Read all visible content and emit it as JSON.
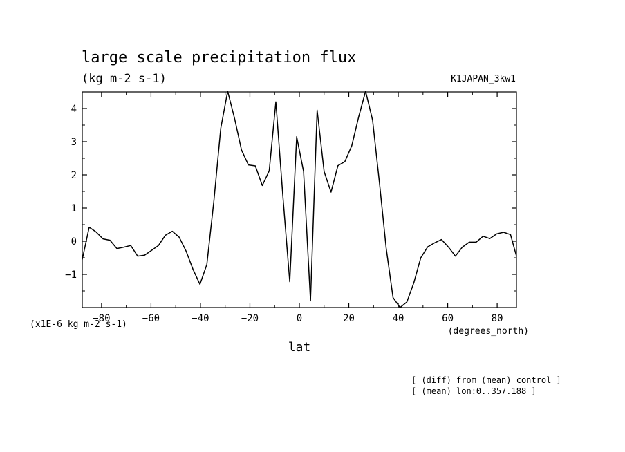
{
  "chart_data": {
    "type": "line",
    "title": "large scale precipitation flux",
    "units": "(kg m-2 s-1)",
    "model_label": "K1JAPAN_3kw1",
    "scale_note": "(x1E-6 kg m-2 s-1)",
    "xlabel": "lat",
    "xunits": "(degrees_north)",
    "notes": [
      "[ (diff) from (mean) control ]",
      "[ (mean) lon:0..357.188 ]"
    ],
    "xlim": [
      -87.8,
      87.8
    ],
    "ylim": [
      -2.0,
      4.5
    ],
    "xticks": [
      -80,
      -60,
      -40,
      -20,
      0,
      20,
      40,
      60,
      80
    ],
    "xtick_labels": [
      "−80",
      "−60",
      "−40",
      "−20",
      "0",
      "20",
      "40",
      "60",
      "80"
    ],
    "yticks": [
      -1,
      0,
      1,
      2,
      3,
      4
    ],
    "ytick_labels": [
      "−1",
      "0",
      "1",
      "2",
      "3",
      "4"
    ],
    "grid": false,
    "series": [
      {
        "x": [
          -87.8,
          -85.0,
          -82.2,
          -79.4,
          -76.6,
          -73.8,
          -71.0,
          -68.2,
          -65.4,
          -62.6,
          -59.8,
          -57.0,
          -54.2,
          -51.4,
          -48.6,
          -45.8,
          -43.0,
          -40.2,
          -37.4,
          -34.6,
          -31.8,
          -29.0,
          -26.2,
          -23.4,
          -20.6,
          -17.8,
          -15.0,
          -12.2,
          -9.5,
          -6.7,
          -3.9,
          -1.1,
          1.7,
          4.5,
          7.2,
          10.0,
          12.8,
          15.6,
          18.4,
          21.2,
          24.0,
          26.8,
          29.6,
          32.4,
          35.1,
          37.9,
          40.7,
          43.5,
          46.3,
          49.1,
          51.9,
          54.7,
          57.5,
          60.3,
          63.1,
          65.9,
          68.7,
          71.5,
          74.3,
          77.0,
          79.8,
          82.6,
          85.4,
          87.8
        ],
        "y": [
          -0.55,
          0.42,
          0.28,
          0.07,
          0.03,
          -0.22,
          -0.18,
          -0.13,
          -0.45,
          -0.42,
          -0.28,
          -0.13,
          0.18,
          0.3,
          0.12,
          -0.3,
          -0.85,
          -1.3,
          -0.7,
          1.2,
          3.4,
          4.52,
          3.7,
          2.75,
          2.3,
          2.27,
          1.68,
          2.12,
          4.2,
          1.4,
          -1.22,
          3.15,
          2.1,
          -1.8,
          3.95,
          2.1,
          1.48,
          2.28,
          2.4,
          2.88,
          3.75,
          4.52,
          3.65,
          1.75,
          -0.2,
          -1.7,
          -2.0,
          -1.83,
          -1.25,
          -0.5,
          -0.17,
          -0.05,
          0.05,
          -0.18,
          -0.45,
          -0.18,
          -0.03,
          -0.03,
          0.15,
          0.08,
          0.22,
          0.27,
          0.2,
          -0.45
        ]
      }
    ]
  }
}
